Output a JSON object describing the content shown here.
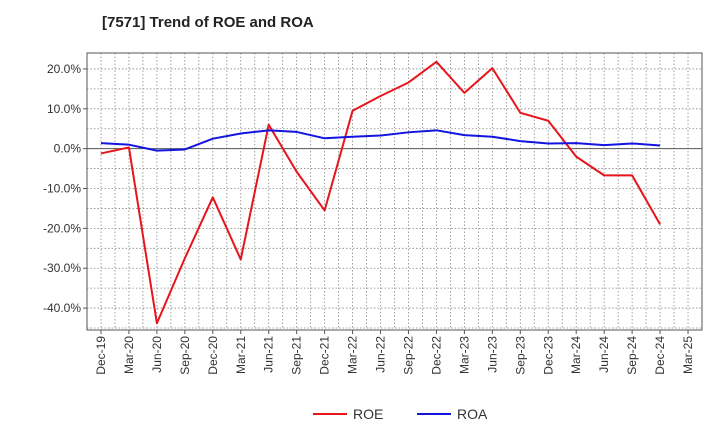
{
  "title": "[7571]  Trend of ROE and ROA",
  "chart_data": {
    "type": "line",
    "title": "[7571]  Trend of ROE and ROA",
    "xlabel": "",
    "ylabel": "",
    "x": [
      "Dec-19",
      "Mar-20",
      "Jun-20",
      "Sep-20",
      "Dec-20",
      "Mar-21",
      "Jun-21",
      "Sep-21",
      "Dec-21",
      "Mar-22",
      "Jun-22",
      "Sep-22",
      "Dec-22",
      "Mar-23",
      "Jun-23",
      "Sep-23",
      "Dec-23",
      "Mar-24",
      "Jun-24",
      "Sep-24",
      "Dec-24",
      "Mar-25"
    ],
    "ylim": [
      -45.5,
      24
    ],
    "yticks": [
      20,
      10,
      0,
      -10,
      -20,
      -30,
      -40
    ],
    "ytick_labels": [
      "20.0%",
      "10.0%",
      "0.0%",
      "-10.0%",
      "-20.0%",
      "-30.0%",
      "-40.0%"
    ],
    "grid": true,
    "legend_position": "bottom-center",
    "series": [
      {
        "name": "ROE",
        "color": "#e8141b",
        "values": [
          -1.2,
          0.3,
          -43.8,
          -27.5,
          -12.2,
          -27.8,
          6.0,
          -5.8,
          -15.5,
          9.5,
          13.2,
          16.6,
          21.8,
          14.0,
          20.2,
          9.0,
          7.0,
          -2.0,
          -6.7,
          -6.7,
          -19.0,
          null
        ]
      },
      {
        "name": "ROA",
        "color": "#1414e0",
        "values": [
          1.4,
          1.0,
          -0.5,
          -0.2,
          2.5,
          3.8,
          4.6,
          4.2,
          2.6,
          3.0,
          3.3,
          4.1,
          4.6,
          3.4,
          3.0,
          1.9,
          1.3,
          1.4,
          0.9,
          1.3,
          0.8,
          null
        ]
      }
    ]
  }
}
